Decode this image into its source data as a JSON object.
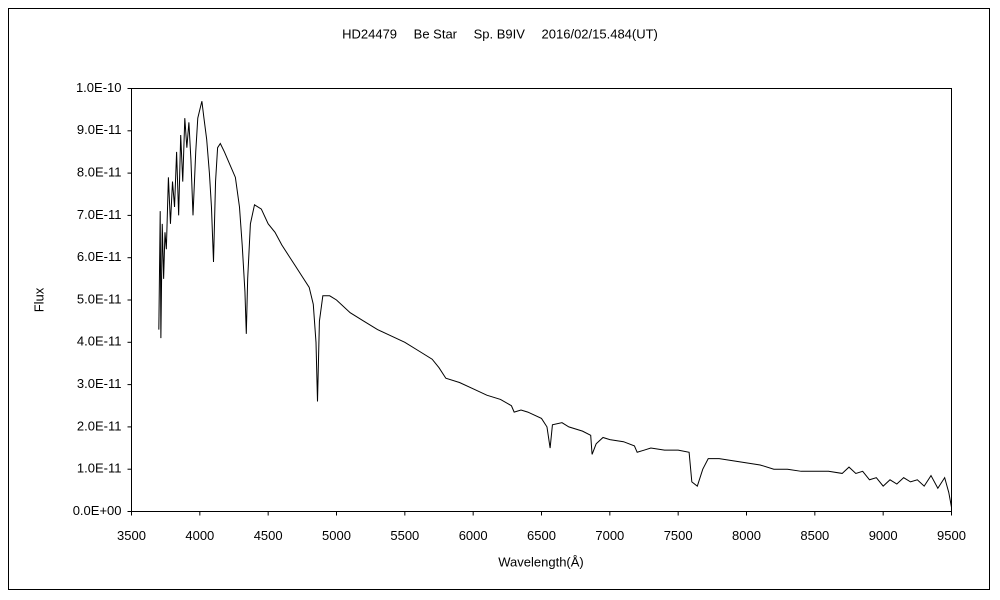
{
  "chart_data": {
    "type": "line",
    "title": "HD24479　 Be Star　 Sp. B9IV　 2016/02/15.484(UT)",
    "xlabel": "Wavelength(Å)",
    "ylabel": "Flux",
    "color": "#000000",
    "xlim": [
      3500,
      9500
    ],
    "xticks": [
      3500,
      4000,
      4500,
      5000,
      5500,
      6000,
      6500,
      7000,
      7500,
      8000,
      8500,
      9000,
      9500
    ],
    "ylim": [
      0,
      1e-10
    ],
    "yticks": [
      {
        "value": 0,
        "label": "0.0E+00"
      },
      {
        "value": 1e-11,
        "label": "1.0E-11"
      },
      {
        "value": 2e-11,
        "label": "2.0E-11"
      },
      {
        "value": 3e-11,
        "label": "3.0E-11"
      },
      {
        "value": 4e-11,
        "label": "4.0E-11"
      },
      {
        "value": 5e-11,
        "label": "5.0E-11"
      },
      {
        "value": 6e-11,
        "label": "6.0E-11"
      },
      {
        "value": 7e-11,
        "label": "7.0E-11"
      },
      {
        "value": 8e-11,
        "label": "8.0E-11"
      },
      {
        "value": 9e-11,
        "label": "9.0E-11"
      },
      {
        "value": 1e-10,
        "label": "1.0E-10"
      }
    ],
    "x": [
      3700,
      3710,
      3715,
      3725,
      3735,
      3745,
      3755,
      3770,
      3785,
      3800,
      3815,
      3830,
      3845,
      3860,
      3875,
      3890,
      3905,
      3920,
      3935,
      3950,
      3970,
      3985,
      4000,
      4015,
      4030,
      4050,
      4070,
      4085,
      4100,
      4115,
      4130,
      4150,
      4180,
      4220,
      4260,
      4290,
      4310,
      4330,
      4340,
      4350,
      4370,
      4400,
      4450,
      4500,
      4550,
      4600,
      4650,
      4700,
      4750,
      4800,
      4830,
      4850,
      4861,
      4875,
      4900,
      4950,
      5000,
      5100,
      5200,
      5300,
      5400,
      5500,
      5600,
      5700,
      5750,
      5800,
      5900,
      6000,
      6100,
      6200,
      6280,
      6300,
      6350,
      6400,
      6500,
      6540,
      6563,
      6580,
      6650,
      6700,
      6800,
      6860,
      6870,
      6900,
      6950,
      7000,
      7100,
      7180,
      7200,
      7250,
      7300,
      7400,
      7500,
      7580,
      7600,
      7640,
      7680,
      7720,
      7800,
      7900,
      8000,
      8100,
      8200,
      8300,
      8400,
      8500,
      8600,
      8700,
      8750,
      8800,
      8850,
      8900,
      8950,
      9000,
      9050,
      9100,
      9150,
      9200,
      9250,
      9300,
      9350,
      9400,
      9450,
      9480,
      9500
    ],
    "values": [
      4.3e-11,
      7.1e-11,
      4.1e-11,
      6.8e-11,
      5.5e-11,
      6.6e-11,
      6.2e-11,
      7.9e-11,
      6.8e-11,
      7.8e-11,
      7.2e-11,
      8.5e-11,
      7e-11,
      8.9e-11,
      7.8e-11,
      9.3e-11,
      8.6e-11,
      9.2e-11,
      8.3e-11,
      7e-11,
      8.5e-11,
      9.3e-11,
      9.5e-11,
      9.7e-11,
      9.3e-11,
      8.8e-11,
      8e-11,
      7.2e-11,
      5.9e-11,
      7.8e-11,
      8.6e-11,
      8.7e-11,
      8.5e-11,
      8.2e-11,
      7.9e-11,
      7.2e-11,
      6.3e-11,
      5.2e-11,
      4.2e-11,
      5.5e-11,
      6.8e-11,
      7.25e-11,
      7.15e-11,
      6.8e-11,
      6.6e-11,
      6.3e-11,
      6.05e-11,
      5.8e-11,
      5.55e-11,
      5.3e-11,
      4.9e-11,
      4e-11,
      2.6e-11,
      4.5e-11,
      5.1e-11,
      5.1e-11,
      5e-11,
      4.7e-11,
      4.5e-11,
      4.3e-11,
      4.15e-11,
      4e-11,
      3.8e-11,
      3.6e-11,
      3.4e-11,
      3.15e-11,
      3.05e-11,
      2.9e-11,
      2.75e-11,
      2.65e-11,
      2.5e-11,
      2.35e-11,
      2.4e-11,
      2.35e-11,
      2.2e-11,
      2e-11,
      1.5e-11,
      2.05e-11,
      2.1e-11,
      2e-11,
      1.9e-11,
      1.8e-11,
      1.35e-11,
      1.6e-11,
      1.75e-11,
      1.7e-11,
      1.65e-11,
      1.55e-11,
      1.4e-11,
      1.45e-11,
      1.5e-11,
      1.45e-11,
      1.45e-11,
      1.4e-11,
      7e-12,
      6e-12,
      1e-11,
      1.25e-11,
      1.25e-11,
      1.2e-11,
      1.15e-11,
      1.1e-11,
      1e-11,
      1e-11,
      9.5e-12,
      9.5e-12,
      9.5e-12,
      9e-12,
      1.05e-11,
      9e-12,
      9.5e-12,
      7.5e-12,
      8e-12,
      6e-12,
      7.5e-12,
      6.5e-12,
      8e-12,
      7e-12,
      7.5e-12,
      6e-12,
      8.5e-12,
      5.5e-12,
      8e-12,
      4.5e-12,
      1e-12
    ]
  }
}
